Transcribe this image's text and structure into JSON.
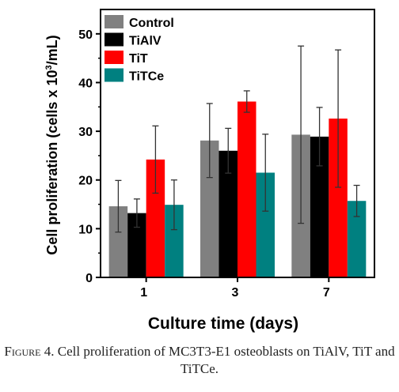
{
  "chart_data": {
    "type": "bar",
    "title": "",
    "xlabel": "Culture time (days)",
    "ylabel_main": "Cell proliferation (cells x 10",
    "ylabel_sup": "3",
    "ylabel_end": "/mL)",
    "categories": [
      "1",
      "3",
      "7"
    ],
    "ylim": [
      0,
      55
    ],
    "yticks": [
      "0",
      "10",
      "20",
      "30",
      "40",
      "50"
    ],
    "legend_position": "top-left",
    "series": [
      {
        "name": "Control",
        "color": "#808080",
        "values": [
          14.6,
          28.1,
          29.3
        ],
        "errors": [
          5.3,
          7.6,
          18.2
        ]
      },
      {
        "name": "TiAlV",
        "color": "#000000",
        "values": [
          13.2,
          26.0,
          28.9
        ],
        "errors": [
          2.9,
          4.6,
          6.0
        ]
      },
      {
        "name": "TiT",
        "color": "#ff0000",
        "values": [
          24.2,
          36.1,
          32.6
        ],
        "errors": [
          6.9,
          2.2,
          14.1
        ]
      },
      {
        "name": "TiTCe",
        "color": "#008080",
        "values": [
          14.9,
          21.5,
          15.7
        ],
        "errors": [
          5.1,
          7.9,
          3.2
        ]
      }
    ]
  },
  "caption": {
    "label": "Figure 4.",
    "text": "Cell proliferation of MC3T3-E1 osteoblasts on TiAlV, TiT and TiTCe."
  }
}
